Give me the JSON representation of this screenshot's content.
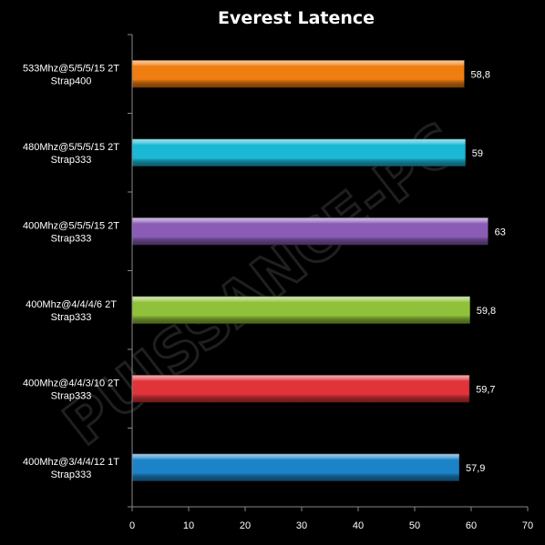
{
  "chart_data": {
    "type": "bar",
    "orientation": "horizontal",
    "title": "Everest Latence",
    "categories": [
      [
        "533Mhz@5/5/5/15  2T",
        "Strap400"
      ],
      [
        "480Mhz@5/5/5/15  2T",
        "Strap333"
      ],
      [
        "400Mhz@5/5/5/15  2T",
        "Strap333"
      ],
      [
        "400Mhz@4/4/4/6  2T",
        "Strap333"
      ],
      [
        "400Mhz@4/4/3/10  2T",
        "Strap333"
      ],
      [
        "400Mhz@3/4/4/12  1T",
        "Strap333"
      ]
    ],
    "values": [
      58.8,
      59,
      63,
      59.8,
      59.7,
      57.9
    ],
    "value_labels": [
      "58,8",
      "59",
      "63",
      "59,8",
      "59,7",
      "57,9"
    ],
    "bar_colors": [
      "#f07d10",
      "#1ab8d4",
      "#8a5cb6",
      "#8fc23a",
      "#e0343a",
      "#1c83c8"
    ],
    "xlim": [
      0,
      70
    ],
    "x_ticks": [
      0,
      10,
      20,
      30,
      40,
      50,
      60,
      70
    ],
    "xlabel": "",
    "ylabel": "",
    "grid": false,
    "legend": "none",
    "background": "#000000"
  },
  "watermark": {
    "text": "PUISSANCE-PC"
  }
}
